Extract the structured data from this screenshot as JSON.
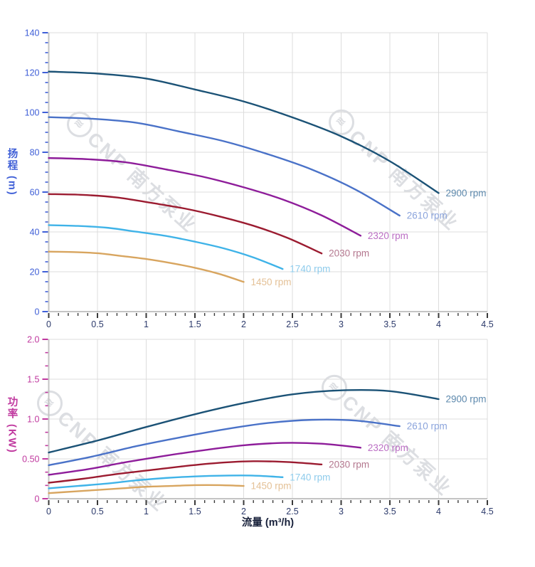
{
  "watermark": {
    "logo_glyph": "≋",
    "text": "CNP 南方泵业"
  },
  "style": {
    "head_axis_color": "#3f5fd7",
    "power_axis_color": "#c0399f",
    "x_tick_label_color": "#2c3a6b",
    "x_title_color": "#17203a",
    "axis_line_color": "#c4c4c4",
    "grid_color": "#dcdcdc",
    "x_tick_color": "#3a3a3a",
    "series_colors": [
      "#1b5276",
      "#4a72c8",
      "#8e1d9a",
      "#9b1b30",
      "#3fb3e8",
      "#d8a55f"
    ],
    "series_label_colors": [
      "#5d89ad",
      "#8ba4dc",
      "#bb6ec4",
      "#b4788f",
      "#8fccec",
      "#e4c197"
    ]
  },
  "chart_data": [
    {
      "type": "line",
      "title": "",
      "xlabel": "流量 (m³/h)",
      "ylabel": "扬程 (m)",
      "xlim": [
        0,
        4.5
      ],
      "ylim": [
        0,
        140
      ],
      "grid": true,
      "legend_position": "curve-ends",
      "x_tick_values": [
        0,
        0.5,
        1,
        1.5,
        2,
        2.5,
        3,
        3.5,
        4,
        4.5
      ],
      "x_tick_labels": [
        "0",
        "0.5",
        "1",
        "1.5",
        "2",
        "2.5",
        "3",
        "3.5",
        "4",
        "4.5"
      ],
      "y_tick_values": [
        0,
        20,
        40,
        60,
        80,
        100,
        120,
        140
      ],
      "y_tick_labels": [
        "0",
        "20",
        "40",
        "60",
        "80",
        "100",
        "120",
        "140"
      ],
      "series": [
        {
          "name": "2900 rpm",
          "x": [
            0,
            0.5,
            1,
            1.5,
            2,
            2.5,
            3,
            3.5,
            4
          ],
          "y": [
            120.5,
            119.5,
            117.0,
            111.5,
            105.5,
            97.5,
            88.0,
            75.5,
            59.5
          ]
        },
        {
          "name": "2610 rpm",
          "x": [
            0,
            0.45,
            0.9,
            1.35,
            1.8,
            2.25,
            2.7,
            3.15,
            3.6
          ],
          "y": [
            97.6,
            96.8,
            94.8,
            90.3,
            85.5,
            79.0,
            71.3,
            61.2,
            48.2
          ]
        },
        {
          "name": "2320 rpm",
          "x": [
            0,
            0.4,
            0.8,
            1.2,
            1.6,
            2,
            2.4,
            2.8,
            3.2
          ],
          "y": [
            77.1,
            76.5,
            74.9,
            71.4,
            67.5,
            62.4,
            56.3,
            48.3,
            38.1
          ]
        },
        {
          "name": "2030 rpm",
          "x": [
            0,
            0.35,
            0.7,
            1.05,
            1.4,
            1.75,
            2.1,
            2.45,
            2.8
          ],
          "y": [
            59.0,
            58.6,
            57.3,
            54.6,
            51.7,
            47.8,
            43.1,
            37.0,
            29.2
          ]
        },
        {
          "name": "1740 rpm",
          "x": [
            0,
            0.3,
            0.6,
            0.9,
            1.2,
            1.5,
            1.8,
            2.1,
            2.4
          ],
          "y": [
            43.4,
            43.0,
            42.1,
            40.1,
            38.0,
            35.1,
            31.7,
            27.2,
            21.4
          ]
        },
        {
          "name": "1450 rpm",
          "x": [
            0,
            0.25,
            0.5,
            0.75,
            1,
            1.25,
            1.5,
            1.75,
            2
          ],
          "y": [
            30.1,
            29.9,
            29.3,
            27.9,
            26.4,
            24.4,
            22.0,
            18.9,
            14.9
          ]
        }
      ]
    },
    {
      "type": "line",
      "title": "",
      "xlabel": "流量 (m³/h)",
      "ylabel": "功率 (KW)",
      "xlim": [
        0,
        4.5
      ],
      "ylim": [
        0,
        2
      ],
      "grid": true,
      "legend_position": "curve-ends",
      "x_tick_values": [
        0,
        0.5,
        1,
        1.5,
        2,
        2.5,
        3,
        3.5,
        4,
        4.5
      ],
      "x_tick_labels": [
        "0",
        "0.5",
        "1",
        "1.5",
        "2",
        "2.5",
        "3",
        "3.5",
        "4",
        "4.5"
      ],
      "y_tick_values": [
        0,
        0.5,
        1,
        1.5,
        2
      ],
      "y_tick_labels": [
        "0",
        "0.50",
        "1.0",
        "1.5",
        "2.0"
      ],
      "series": [
        {
          "name": "2900 rpm",
          "x": [
            0,
            0.5,
            1,
            1.5,
            2,
            2.5,
            3,
            3.5,
            4
          ],
          "y": [
            0.58,
            0.73,
            0.9,
            1.06,
            1.2,
            1.31,
            1.36,
            1.35,
            1.25
          ]
        },
        {
          "name": "2610 rpm",
          "x": [
            0,
            0.45,
            0.9,
            1.35,
            1.8,
            2.25,
            2.7,
            3.15,
            3.6
          ],
          "y": [
            0.42,
            0.53,
            0.66,
            0.77,
            0.87,
            0.95,
            0.99,
            0.98,
            0.91
          ]
        },
        {
          "name": "2320 rpm",
          "x": [
            0,
            0.4,
            0.8,
            1.2,
            1.6,
            2,
            2.4,
            2.8,
            3.2
          ],
          "y": [
            0.3,
            0.37,
            0.46,
            0.54,
            0.61,
            0.67,
            0.7,
            0.69,
            0.64
          ]
        },
        {
          "name": "2030 rpm",
          "x": [
            0,
            0.35,
            0.7,
            1.05,
            1.4,
            1.75,
            2.1,
            2.45,
            2.8
          ],
          "y": [
            0.2,
            0.25,
            0.31,
            0.36,
            0.41,
            0.45,
            0.47,
            0.46,
            0.43
          ]
        },
        {
          "name": "1740 rpm",
          "x": [
            0,
            0.3,
            0.6,
            0.9,
            1.2,
            1.5,
            1.8,
            2.1,
            2.4
          ],
          "y": [
            0.13,
            0.16,
            0.19,
            0.23,
            0.26,
            0.28,
            0.29,
            0.29,
            0.27
          ]
        },
        {
          "name": "1450 rpm",
          "x": [
            0,
            0.25,
            0.5,
            0.75,
            1,
            1.25,
            1.5,
            1.75,
            2
          ],
          "y": [
            0.07,
            0.09,
            0.11,
            0.13,
            0.15,
            0.16,
            0.17,
            0.17,
            0.16
          ]
        }
      ]
    }
  ]
}
